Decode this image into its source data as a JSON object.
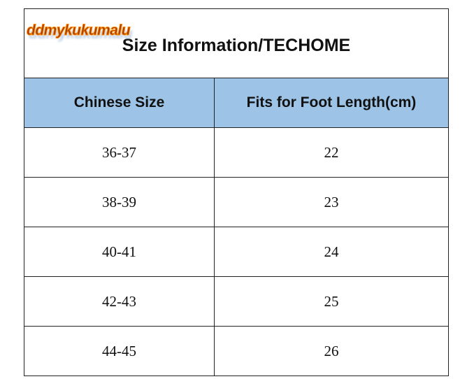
{
  "watermark": "ddmykukumalu",
  "title": "Size Information/TECHOME",
  "header_color": "#9dc3e6",
  "columns": [
    "Chinese Size",
    "Fits for Foot Length(cm)"
  ],
  "rows": [
    [
      "36-37",
      "22"
    ],
    [
      "38-39",
      "23"
    ],
    [
      "40-41",
      "24"
    ],
    [
      "42-43",
      "25"
    ],
    [
      "44-45",
      "26"
    ]
  ]
}
